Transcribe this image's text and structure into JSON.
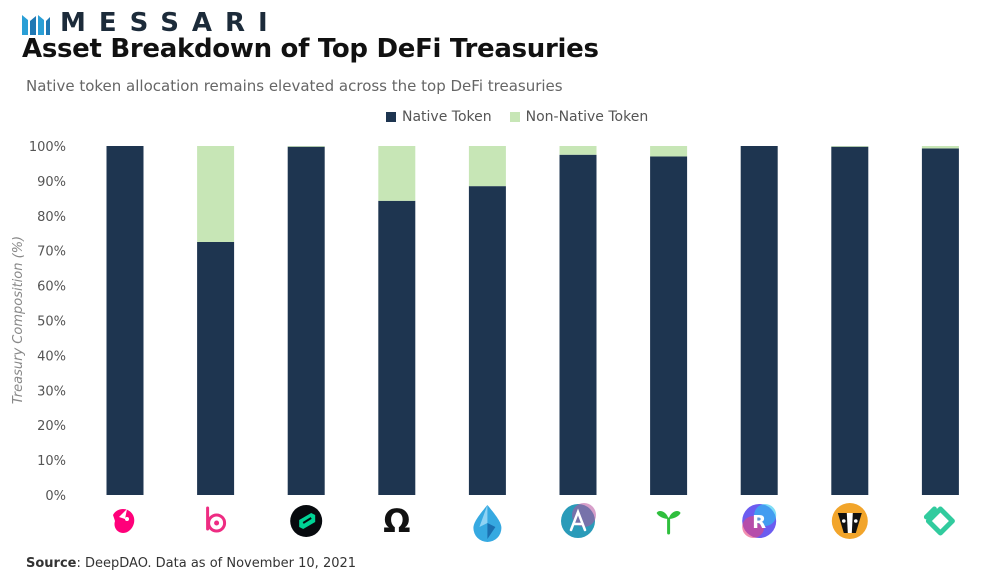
{
  "brand": {
    "name": "MESSARI"
  },
  "header": {
    "title": "Asset Breakdown of Top DeFi Treasuries",
    "subtitle": "Native token allocation remains elevated across the top DeFi treasuries"
  },
  "footer": {
    "source_label": "Source",
    "source_text": ": DeepDAO. Data as of November 10, 2021"
  },
  "colors": {
    "native": "#1e3550",
    "non_native": "#c7e6b6",
    "axis_text": "#555555"
  },
  "chart_data": {
    "type": "bar",
    "stacked": true,
    "title": "Asset Breakdown of Top DeFi Treasuries",
    "ylabel": "Treasury Composition (%)",
    "xlabel": "",
    "ylim": [
      0,
      100
    ],
    "yticks": [
      "0%",
      "10%",
      "20%",
      "30%",
      "40%",
      "50%",
      "60%",
      "70%",
      "80%",
      "90%",
      "100%"
    ],
    "legend_position": "top-center",
    "categories": [
      {
        "icon": "uniswap-icon"
      },
      {
        "icon": "badger-b-icon"
      },
      {
        "icon": "compound-icon"
      },
      {
        "icon": "omega-icon"
      },
      {
        "icon": "water-drop-icon"
      },
      {
        "icon": "aave-icon"
      },
      {
        "icon": "sprout-icon"
      },
      {
        "icon": "rari-icon"
      },
      {
        "icon": "badger-dao-icon"
      },
      {
        "icon": "kyber-icon"
      }
    ],
    "series": [
      {
        "name": "Native Token",
        "values": [
          100,
          72.5,
          99.8,
          84.3,
          88.5,
          97.5,
          97,
          100,
          99.8,
          99.3
        ]
      },
      {
        "name": "Non-Native Token",
        "values": [
          0,
          27.5,
          0.2,
          15.7,
          11.5,
          2.5,
          3,
          0,
          0.2,
          0.7
        ]
      }
    ]
  }
}
